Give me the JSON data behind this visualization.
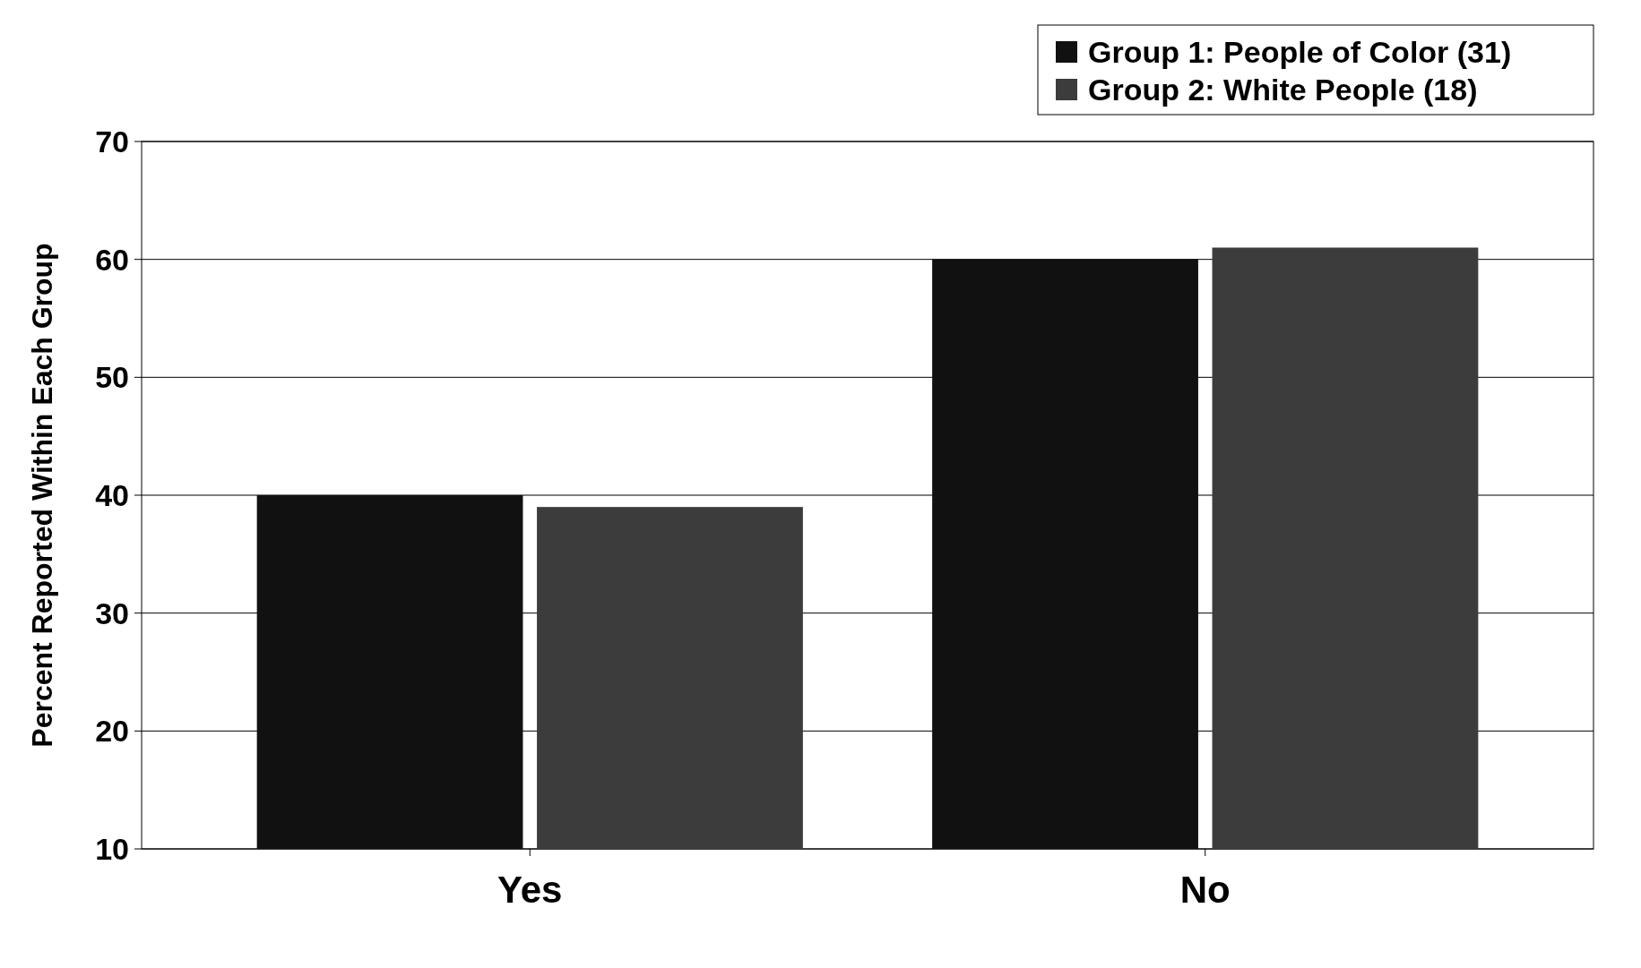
{
  "chart_data": {
    "type": "bar",
    "ylabel": "Percent Reported Within Each Group",
    "categories": [
      "Yes",
      "No"
    ],
    "series": [
      {
        "name": "Group 1: People of Color (31)",
        "color": "#111111",
        "values": [
          40,
          60
        ]
      },
      {
        "name": "Group 2: White People (18)",
        "color": "#3c3c3c",
        "values": [
          39,
          61
        ]
      }
    ],
    "ylim": [
      10,
      70
    ],
    "yticks": [
      10,
      20,
      30,
      40,
      50,
      60,
      70
    ],
    "grid": "y",
    "legend": "top right"
  }
}
